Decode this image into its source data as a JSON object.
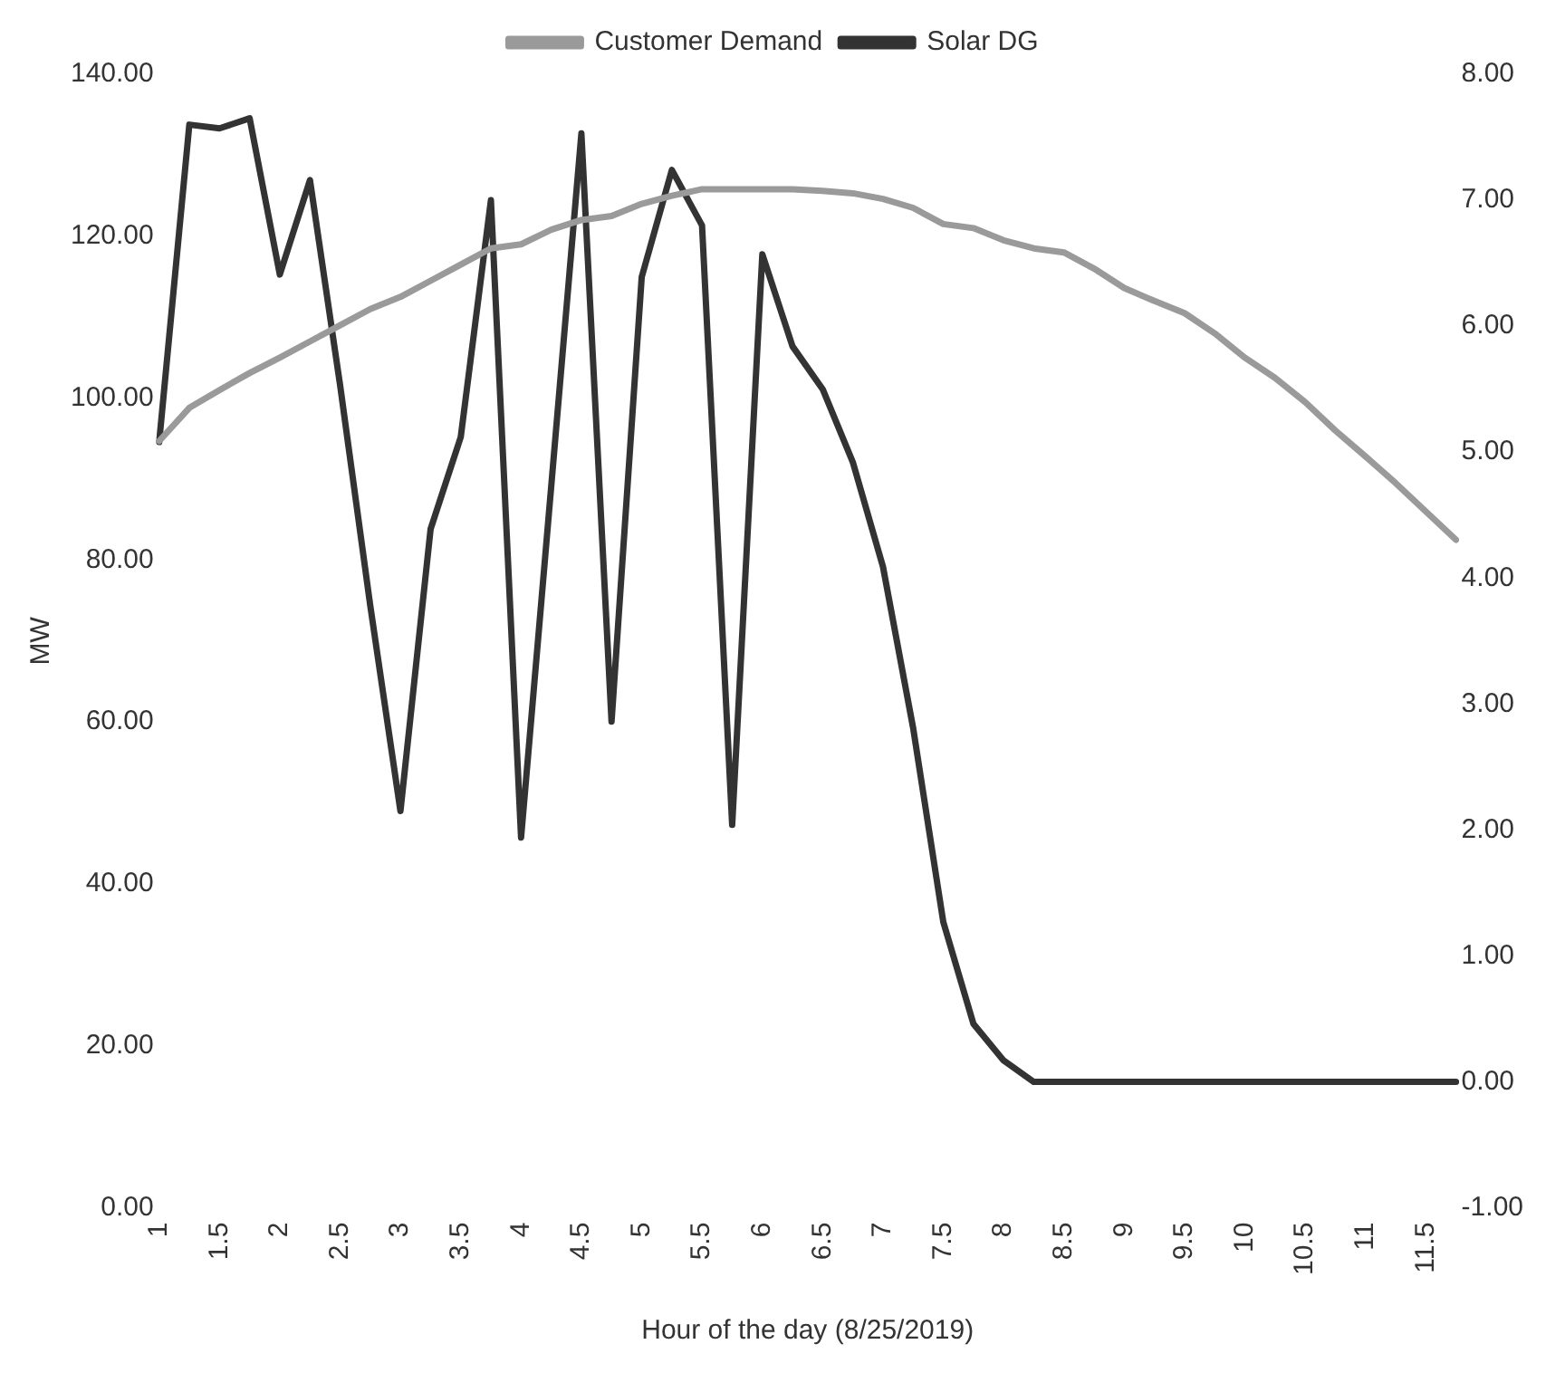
{
  "chart_data": {
    "type": "line",
    "xlabel": "Hour of the day (8/25/2019)",
    "ylabel": "MW",
    "categories": [
      "1",
      null,
      "1.5",
      null,
      "2",
      null,
      "2.5",
      null,
      "3",
      null,
      "3.5",
      null,
      "4",
      null,
      "4.5",
      null,
      "5",
      null,
      "5.5",
      null,
      "6",
      null,
      "6.5",
      null,
      "7",
      null,
      "7.5",
      null,
      "8",
      null,
      "8.5",
      null,
      "9",
      null,
      "9.5",
      null,
      "10",
      null,
      "10.5",
      null,
      "11",
      null,
      "11.5",
      null
    ],
    "series": [
      {
        "name": "Customer Demand",
        "color": "#9a9a9a",
        "values": [
          94.7,
          98.8,
          101,
          103.1,
          105,
          107,
          109,
          111,
          112.5,
          114.5,
          116.5,
          118.5,
          119,
          120.8,
          122,
          122.5,
          124,
          125,
          125.8,
          125.8,
          125.8,
          125.8,
          125.6,
          125.3,
          124.6,
          123.5,
          121.5,
          121,
          119.5,
          118.5,
          118,
          116,
          113.6,
          112,
          110.5,
          108,
          105,
          102.5,
          99.5,
          96,
          92.8,
          89.5,
          86,
          82.5
        ]
      },
      {
        "name": "Solar DG",
        "color": "#333333",
        "axis": "y2",
        "values": [
          5.08,
          7.6,
          7.57,
          7.65,
          6.41,
          7.16,
          5.53,
          3.78,
          2.15,
          4.39,
          5.12,
          7.0,
          1.94,
          4.73,
          7.53,
          2.86,
          6.39,
          7.24,
          6.8,
          2.04,
          6.57,
          5.84,
          5.5,
          4.92,
          4.09,
          2.81,
          1.27,
          0.46,
          0.17,
          0,
          0,
          0,
          0,
          0,
          0,
          0,
          0,
          0,
          0,
          0,
          0,
          0,
          0,
          0
        ]
      }
    ],
    "ylim": [
      0,
      140
    ],
    "yticks": [
      {
        "value": 0,
        "label": "0.00"
      },
      {
        "value": 20,
        "label": "20.00"
      },
      {
        "value": 40,
        "label": "40.00"
      },
      {
        "value": 60,
        "label": "60.00"
      },
      {
        "value": 80,
        "label": "80.00"
      },
      {
        "value": 100,
        "label": "100.00"
      },
      {
        "value": 120,
        "label": "120.00"
      },
      {
        "value": 140,
        "label": "140.00"
      }
    ],
    "y2lim": [
      -1,
      8
    ],
    "y2ticks": [
      {
        "value": -1,
        "label": "-1.00"
      },
      {
        "value": 0,
        "label": "0.00"
      },
      {
        "value": 1,
        "label": "1.00"
      },
      {
        "value": 2,
        "label": "2.00"
      },
      {
        "value": 3,
        "label": "3.00"
      },
      {
        "value": 4,
        "label": "4.00"
      },
      {
        "value": 5,
        "label": "5.00"
      },
      {
        "value": 6,
        "label": "6.00"
      },
      {
        "value": 7,
        "label": "7.00"
      },
      {
        "value": 8,
        "label": "8.00"
      }
    ],
    "grid": false,
    "legend": "top",
    "marker": "none",
    "line_style": "solid"
  }
}
